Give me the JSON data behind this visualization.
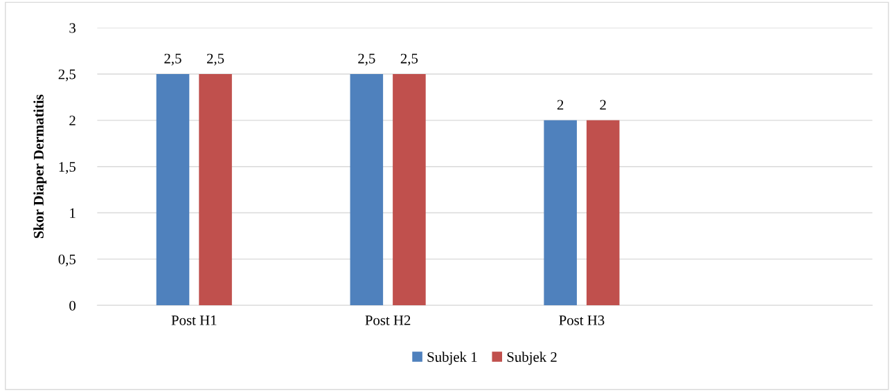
{
  "chart_data": {
    "type": "bar",
    "ylabel": "Skor Diaper Dermatitis",
    "categories": [
      "Post H1",
      "Post H2",
      "Post H3",
      null
    ],
    "series": [
      {
        "name": "Subjek 1",
        "color": "#4f81bd",
        "values": [
          2.5,
          2.5,
          2,
          null
        ],
        "value_labels": [
          "2,5",
          "2,5",
          "2",
          null
        ]
      },
      {
        "name": "Subjek 2",
        "color": "#c0504d",
        "values": [
          2.5,
          2.5,
          2,
          null
        ],
        "value_labels": [
          "2,5",
          "2,5",
          "2",
          null
        ]
      }
    ],
    "ylim": [
      0,
      3
    ],
    "yticks": [
      0,
      {
        "value": 0.5,
        "label": "0,5"
      },
      1,
      {
        "value": 1.5,
        "label": "1,5"
      },
      2,
      {
        "value": 2.5,
        "label": "2,5"
      },
      3
    ],
    "grid": "y",
    "legend": "bottom"
  }
}
